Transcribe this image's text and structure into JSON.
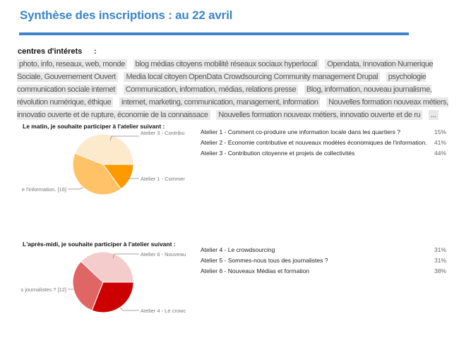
{
  "header": {
    "title": "Synthèse des inscriptions : au 22 avril"
  },
  "interests": {
    "label": "centres d'intérets",
    "colon": ":",
    "tags": [
      "photo, info, reseaux, web, monde",
      "blog médias citoyens mobilité réseaux sociaux hyperlocal",
      "Opendata, Innovation Numerique Sociale, Gouvernement Ouvert",
      "Media local citoyen OpenData Crowdsourcing Community management Drupal",
      "psychologie communication sociale internet",
      "Communication, information, médias, relations presse",
      "Blog, information, nouveau journalisme, révolution numérique, éthique",
      "internet, marketing, communication, management, information",
      "Nouvelles formation nouveax métiers, innovatio ouverte et de rupture, économie de la connaissace",
      "Nouvelles formation nouveax métiers, innovatio ouverte et de ru",
      "..."
    ]
  },
  "chart_data": [
    {
      "type": "pie",
      "title": "Le matin, je souhaite participer à l'atelier suivant :",
      "categories": [
        "Atelier 1 - Comment co-produire une information locale dans les quartiers ?",
        "Atelier 2 - Economie contributive et nouveaux modèles économiques de l'information.",
        "Atelier 3 - Contribution citoyenne et projets de collectivités"
      ],
      "values": [
        15,
        41,
        44
      ],
      "value_labels": [
        "15%",
        "41%",
        "44%"
      ],
      "colors": [
        "#ff9900",
        "#ffc266",
        "#fde9cb"
      ],
      "callouts": [
        "Atelier 3 - Contribu",
        "Atelier 1 - Commer",
        "e l'information. [16]"
      ]
    },
    {
      "type": "pie",
      "title": "L'après-midi, je souhaite participer à l'atelier suivant :",
      "categories": [
        "Atelier 4 - Le crowdsourcing",
        "Atelier 5 - Sommes-nous tous des journalistes ?",
        "Atelier 6 - Nouveaux Médias et formation"
      ],
      "values": [
        31,
        31,
        38
      ],
      "value_labels": [
        "31%",
        "31%",
        "38%"
      ],
      "colors": [
        "#cc0000",
        "#e06666",
        "#f4cccc"
      ],
      "callouts": [
        "Atelier 6 - Nouveau",
        "s journalistes ? [12]",
        "Atelier 4 - Le crowc"
      ]
    }
  ]
}
